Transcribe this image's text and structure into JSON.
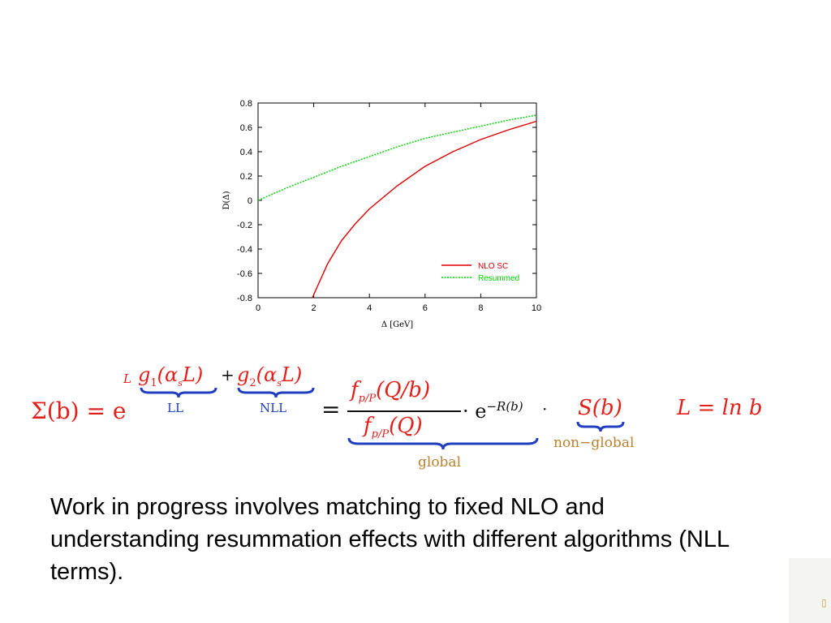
{
  "chart_data": {
    "type": "line",
    "xlabel": "Δ [GeV]",
    "ylabel": "D(Δ)",
    "xlim": [
      0,
      10
    ],
    "ylim": [
      -0.8,
      0.8
    ],
    "xticks": [
      "0",
      "2",
      "4",
      "6",
      "8",
      "10"
    ],
    "yticks": [
      "0.8",
      "0.6",
      "0.4",
      "0.2",
      "0",
      "-0.2",
      "-0.4",
      "-0.6",
      "-0.8"
    ],
    "grid": false,
    "legend_position": "bottom-right",
    "series": [
      {
        "name": "NLO SC",
        "color": "#e00000",
        "style": "solid",
        "x": [
          1.95,
          2.5,
          3,
          3.5,
          4,
          5,
          6,
          7,
          8,
          9,
          10
        ],
        "y": [
          -0.8,
          -0.52,
          -0.33,
          -0.19,
          -0.07,
          0.12,
          0.28,
          0.4,
          0.5,
          0.58,
          0.65
        ]
      },
      {
        "name": "Resummed",
        "color": "#00d000",
        "style": "dotted",
        "x": [
          0,
          1,
          2,
          3,
          4,
          5,
          6,
          7,
          8,
          9,
          10
        ],
        "y": [
          0,
          0.1,
          0.19,
          0.28,
          0.36,
          0.44,
          0.51,
          0.56,
          0.61,
          0.66,
          0.7
        ]
      }
    ]
  },
  "formula": {
    "lhs": "Σ(b) = e",
    "exp_L": "L",
    "g1": "g",
    "g1_sub": "1",
    "g1_arg": "(α",
    "g1_s": "s",
    "g1_tail": "L)",
    "plus": "+",
    "g2": "g",
    "g2_sub": "2",
    "g2_arg": "(α",
    "g2_s": "s",
    "g2_tail": "L)",
    "ll": "LL",
    "nll": "NLL",
    "eq": "=",
    "num": "f",
    "num_sub": "p/P",
    "num_arg": "(Q/b)",
    "den": "f",
    "den_sub": "p/P",
    "den_arg": "(Q)",
    "dot": "· e",
    "exp_r": "−R(b)",
    "dot2": "·",
    "s": "S(b)",
    "global": "global",
    "nonglobal": "non−global",
    "L_def": "L = ln b"
  },
  "body": {
    "text": "Work in progress involves matching to fixed NLO and understanding resummation effects with different algorithms (NLL terms)."
  }
}
